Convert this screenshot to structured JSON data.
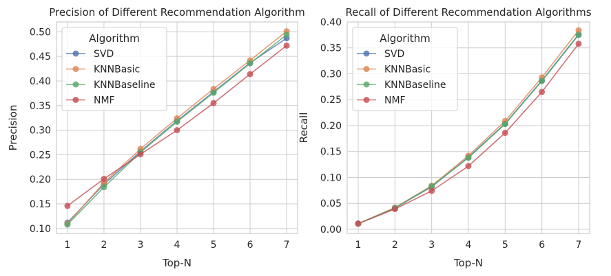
{
  "chart_data": [
    {
      "type": "line",
      "title": "Precision of Different Recommendation Algorithm",
      "xlabel": "Top-N",
      "ylabel": "Precision",
      "x": [
        1,
        2,
        3,
        4,
        5,
        6,
        7
      ],
      "xticks": [
        "1",
        "2",
        "3",
        "4",
        "5",
        "6",
        "7"
      ],
      "xlim": [
        0.7,
        7.3
      ],
      "ylim": [
        0.09,
        0.52
      ],
      "yticks": [
        "0.10",
        "0.15",
        "0.20",
        "0.25",
        "0.30",
        "0.35",
        "0.40",
        "0.45",
        "0.50"
      ],
      "grid": true,
      "legend": {
        "title": "Algorithm",
        "placement": "upper-left"
      },
      "series": [
        {
          "name": "SVD",
          "color": "#4c72b0",
          "values": [
            0.112,
            0.19,
            0.257,
            0.319,
            0.378,
            0.437,
            0.487
          ]
        },
        {
          "name": "KNNBasic",
          "color": "#dd8452",
          "values": [
            0.11,
            0.193,
            0.262,
            0.324,
            0.384,
            0.442,
            0.501
          ]
        },
        {
          "name": "KNNBaseline",
          "color": "#55a868",
          "values": [
            0.108,
            0.184,
            0.255,
            0.317,
            0.376,
            0.436,
            0.494
          ]
        },
        {
          "name": "NMF",
          "color": "#c44e52",
          "values": [
            0.146,
            0.201,
            0.251,
            0.3,
            0.355,
            0.414,
            0.472
          ]
        }
      ]
    },
    {
      "type": "line",
      "title": "Recall of Different Recommendation Algorithms",
      "xlabel": "Top-N",
      "ylabel": "Recall",
      "x": [
        1,
        2,
        3,
        4,
        5,
        6,
        7
      ],
      "xticks": [
        "1",
        "2",
        "3",
        "4",
        "5",
        "6",
        "7"
      ],
      "xlim": [
        0.7,
        7.3
      ],
      "ylim": [
        -0.008,
        0.4
      ],
      "yticks": [
        "0.00",
        "0.05",
        "0.10",
        "0.15",
        "0.20",
        "0.25",
        "0.30",
        "0.35",
        "0.40"
      ],
      "grid": true,
      "legend": {
        "title": "Algorithm",
        "placement": "upper-left"
      },
      "series": [
        {
          "name": "SVD",
          "color": "#4c72b0",
          "values": [
            0.011,
            0.041,
            0.082,
            0.139,
            0.204,
            0.287,
            0.376
          ]
        },
        {
          "name": "KNNBasic",
          "color": "#dd8452",
          "values": [
            0.011,
            0.042,
            0.084,
            0.142,
            0.209,
            0.293,
            0.384
          ]
        },
        {
          "name": "KNNBaseline",
          "color": "#55a868",
          "values": [
            0.011,
            0.041,
            0.083,
            0.138,
            0.203,
            0.286,
            0.375
          ]
        },
        {
          "name": "NMF",
          "color": "#c44e52",
          "values": [
            0.011,
            0.039,
            0.074,
            0.122,
            0.186,
            0.265,
            0.358
          ]
        }
      ]
    }
  ]
}
